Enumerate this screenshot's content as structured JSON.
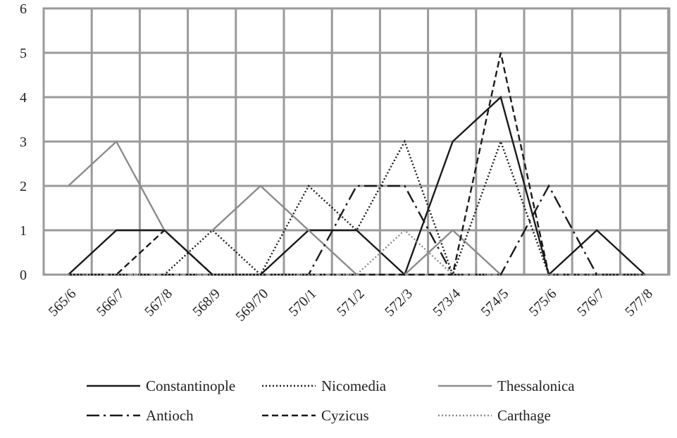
{
  "chart_data": {
    "type": "line",
    "title": "",
    "xlabel": "",
    "ylabel": "",
    "categories": [
      "565/6",
      "566/7",
      "567/8",
      "568/9",
      "569/70",
      "570/1",
      "571/2",
      "572/3",
      "573/4",
      "574/5",
      "575/6",
      "576/7",
      "577/8"
    ],
    "ylim": [
      0,
      6
    ],
    "yticks": [
      0,
      1,
      2,
      3,
      4,
      5,
      6
    ],
    "grid": true,
    "legend_position": "bottom",
    "series": [
      {
        "name": "Constantinople",
        "style": "solid",
        "color": "#1a1a1a",
        "values": [
          0,
          1,
          1,
          0,
          0,
          1,
          1,
          0,
          3,
          4,
          0,
          1,
          0
        ]
      },
      {
        "name": "Nicomedia",
        "style": "dotted",
        "color": "#1a1a1a",
        "values": [
          0,
          0,
          0,
          1,
          0,
          2,
          1,
          3,
          0,
          3,
          0,
          0,
          0
        ]
      },
      {
        "name": "Thessalonica",
        "style": "solid",
        "color": "#8c8c8c",
        "values": [
          2,
          3,
          1,
          1,
          2,
          1,
          0,
          0,
          1,
          0,
          0,
          0,
          0
        ]
      },
      {
        "name": "Antioch",
        "style": "dash-dot",
        "color": "#1a1a1a",
        "values": [
          0,
          0,
          0,
          0,
          0,
          0,
          2,
          2,
          0,
          0,
          2,
          0,
          0
        ]
      },
      {
        "name": "Cyzicus",
        "style": "dashed",
        "color": "#1a1a1a",
        "values": [
          0,
          0,
          1,
          0,
          0,
          0,
          0,
          0,
          0,
          5,
          0,
          0,
          0
        ]
      },
      {
        "name": "Carthage",
        "style": "dotted",
        "color": "#8c8c8c",
        "values": [
          0,
          0,
          0,
          0,
          0,
          0,
          0,
          1,
          0,
          0,
          0,
          0,
          0
        ]
      }
    ]
  }
}
